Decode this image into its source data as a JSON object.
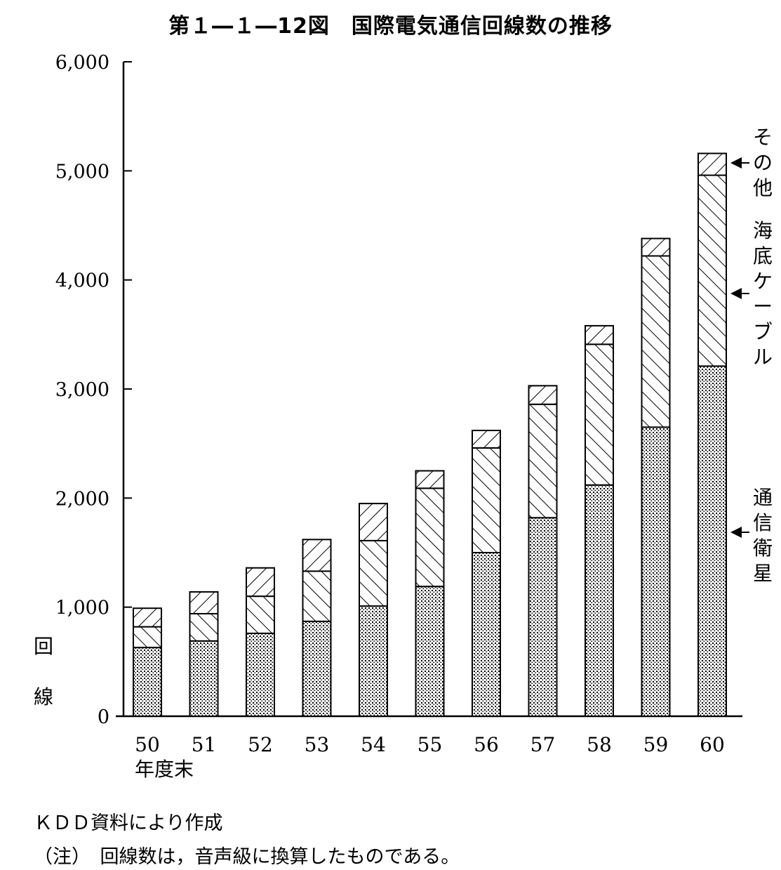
{
  "title": "第１―１―12図　国際電気通信回線数の推移",
  "ylabel": "回線",
  "xlabel": "年度末",
  "source_note": "ＫＤＤ資料により作成",
  "footnote": "（注）　回線数は，音声級に換算したものである。",
  "chart_data": {
    "type": "bar",
    "stacked": true,
    "categories": [
      "50",
      "51",
      "52",
      "53",
      "54",
      "55",
      "56",
      "57",
      "58",
      "59",
      "60"
    ],
    "series": [
      {
        "name": "通信衛星",
        "values": [
          630,
          690,
          760,
          870,
          1010,
          1190,
          1500,
          1820,
          2120,
          2650,
          3210
        ]
      },
      {
        "name": "海底ケーブル",
        "values": [
          190,
          250,
          340,
          460,
          600,
          900,
          960,
          1040,
          1290,
          1570,
          1750
        ]
      },
      {
        "name": "その他",
        "values": [
          170,
          200,
          260,
          290,
          340,
          160,
          160,
          170,
          170,
          160,
          200
        ]
      }
    ],
    "ylim": [
      0,
      6000
    ],
    "yticks": [
      "0",
      "1,000",
      "2,000",
      "3,000",
      "4,000",
      "5,000",
      "6,000"
    ],
    "ytick_values": [
      0,
      1000,
      2000,
      3000,
      4000,
      5000,
      6000
    ],
    "grid": false,
    "legend": "right, labels with arrows"
  }
}
